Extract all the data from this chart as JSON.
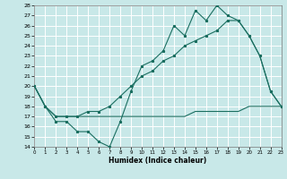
{
  "xlabel": "Humidex (Indice chaleur)",
  "xlim": [
    0,
    23
  ],
  "ylim": [
    14,
    28
  ],
  "yticks": [
    14,
    15,
    16,
    17,
    18,
    19,
    20,
    21,
    22,
    23,
    24,
    25,
    26,
    27,
    28
  ],
  "xticks": [
    0,
    1,
    2,
    3,
    4,
    5,
    6,
    7,
    8,
    9,
    10,
    11,
    12,
    13,
    14,
    15,
    16,
    17,
    18,
    19,
    20,
    21,
    22,
    23
  ],
  "bg_color": "#c8e8e8",
  "grid_color": "#ffffff",
  "line_color": "#1a6e60",
  "line1_y": [
    20.0,
    18.0,
    16.5,
    16.5,
    15.5,
    15.5,
    14.5,
    14.0,
    16.5,
    19.5,
    22.0,
    22.5,
    23.5,
    26.0,
    25.0,
    27.5,
    26.5,
    28.0,
    27.0,
    26.5,
    25.0,
    23.0,
    19.5,
    18.0
  ],
  "line2_y": [
    20.0,
    18.0,
    17.0,
    17.0,
    17.0,
    17.5,
    17.5,
    18.0,
    19.0,
    20.0,
    21.0,
    21.5,
    22.5,
    23.0,
    24.0,
    24.5,
    25.0,
    25.5,
    26.5,
    26.5,
    25.0,
    23.0,
    19.5,
    18.0
  ],
  "line3_y": [
    20.0,
    18.0,
    17.0,
    17.0,
    17.0,
    17.0,
    17.0,
    17.0,
    17.0,
    17.0,
    17.0,
    17.0,
    17.0,
    17.0,
    17.0,
    17.5,
    17.5,
    17.5,
    17.5,
    17.5,
    18.0,
    18.0,
    18.0,
    18.0
  ]
}
